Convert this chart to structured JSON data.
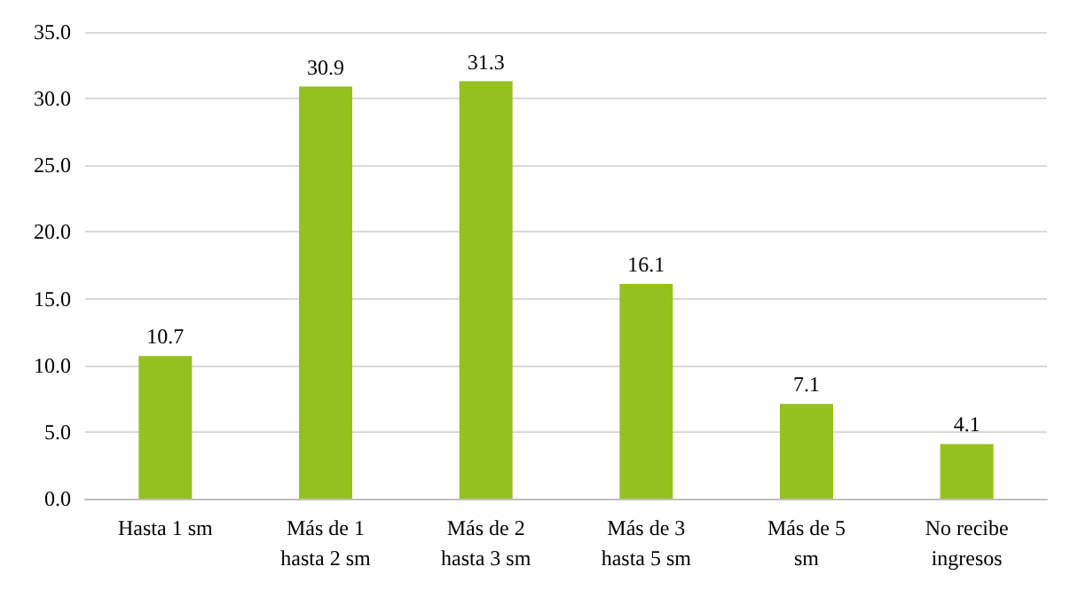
{
  "chart_data": {
    "type": "bar",
    "categories": [
      "Hasta 1 sm",
      "Más de 1\nhasta 2 sm",
      "Más de 2\nhasta 3 sm",
      "Más de 3\nhasta 5 sm",
      "Más de 5\nsm",
      "No recibe\ningresos"
    ],
    "values": [
      10.7,
      30.9,
      31.3,
      16.1,
      7.1,
      4.1
    ],
    "color": "#95c11f",
    "data_labels": true,
    "grid": "y",
    "ylim": [
      0,
      35
    ],
    "yticks": [
      {
        "value": 0,
        "label": "0.0"
      },
      {
        "value": 5,
        "label": "5.0"
      },
      {
        "value": 10,
        "label": "10.0"
      },
      {
        "value": 15,
        "label": "15.0"
      },
      {
        "value": 20,
        "label": "20.0"
      },
      {
        "value": 25,
        "label": "25.0"
      },
      {
        "value": 30,
        "label": "30.0"
      },
      {
        "value": 35,
        "label": "35.0"
      }
    ]
  }
}
